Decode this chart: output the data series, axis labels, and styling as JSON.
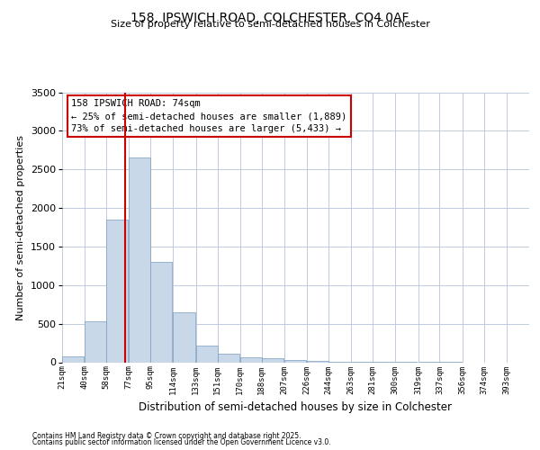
{
  "title_line1": "158, IPSWICH ROAD, COLCHESTER, CO4 0AF",
  "title_line2": "Size of property relative to semi-detached houses in Colchester",
  "xlabel": "Distribution of semi-detached houses by size in Colchester",
  "ylabel": "Number of semi-detached properties",
  "footer_line1": "Contains HM Land Registry data © Crown copyright and database right 2025.",
  "footer_line2": "Contains public sector information licensed under the Open Government Licence v3.0.",
  "annotation_line1": "158 IPSWICH ROAD: 74sqm",
  "annotation_line2": "← 25% of semi-detached houses are smaller (1,889)",
  "annotation_line3": "73% of semi-detached houses are larger (5,433) →",
  "property_size": 74,
  "vline_x": 74,
  "categories": [
    "21sqm",
    "40sqm",
    "58sqm",
    "77sqm",
    "95sqm",
    "114sqm",
    "133sqm",
    "151sqm",
    "170sqm",
    "188sqm",
    "207sqm",
    "226sqm",
    "244sqm",
    "263sqm",
    "281sqm",
    "300sqm",
    "319sqm",
    "337sqm",
    "356sqm",
    "374sqm",
    "393sqm"
  ],
  "bin_starts": [
    21,
    40,
    58,
    77,
    95,
    114,
    133,
    151,
    170,
    188,
    207,
    226,
    244,
    263,
    281,
    300,
    319,
    337,
    356,
    374,
    393
  ],
  "values": [
    80,
    530,
    1850,
    2650,
    1300,
    650,
    220,
    110,
    70,
    50,
    25,
    15,
    8,
    5,
    3,
    2,
    1,
    1,
    0,
    0,
    0
  ],
  "bar_color": "#c8d8e8",
  "bar_edge_color": "#7a9cbf",
  "vline_color": "#cc0000",
  "annotation_box_edge_color": "#cc0000",
  "background_color": "#ffffff",
  "grid_color": "#c0ccdd",
  "ylim": [
    0,
    3500
  ],
  "yticks": [
    0,
    500,
    1000,
    1500,
    2000,
    2500,
    3000,
    3500
  ]
}
